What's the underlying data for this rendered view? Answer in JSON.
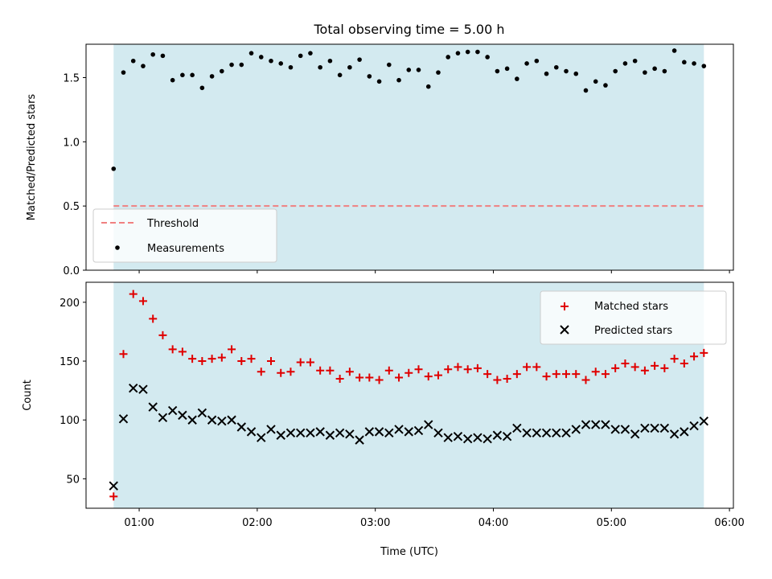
{
  "chart_data": [
    {
      "type": "scatter",
      "title": "Total observing time = 5.00 h",
      "xlabel": "",
      "ylabel": "Matched/Predicted stars",
      "xlim": [
        "00:33",
        "06:02"
      ],
      "ylim": [
        0,
        1.76
      ],
      "x_ticks": [
        "01:00",
        "02:00",
        "03:00",
        "04:00",
        "05:00",
        "06:00"
      ],
      "y_ticks": [
        "0.0",
        "0.5",
        "1.0",
        "1.5"
      ],
      "shaded_span": [
        "00:47",
        "05:47"
      ],
      "shade_color": "#d3eaf0",
      "legend_position": "lower-left",
      "threshold": {
        "name": "Threshold",
        "value": 0.5,
        "color": "#f08080",
        "style": "dashed"
      },
      "series": [
        {
          "name": "Measurements",
          "marker": "dot",
          "color": "#000000",
          "x": [
            "00:47",
            "00:52",
            "00:57",
            "01:02",
            "01:07",
            "01:12",
            "01:17",
            "01:22",
            "01:27",
            "01:32",
            "01:37",
            "01:42",
            "01:47",
            "01:52",
            "01:57",
            "02:02",
            "02:07",
            "02:12",
            "02:17",
            "02:22",
            "02:27",
            "02:32",
            "02:37",
            "02:42",
            "02:47",
            "02:52",
            "02:57",
            "03:02",
            "03:07",
            "03:12",
            "03:17",
            "03:22",
            "03:27",
            "03:32",
            "03:37",
            "03:42",
            "03:47",
            "03:52",
            "03:57",
            "04:02",
            "04:07",
            "04:12",
            "04:17",
            "04:22",
            "04:27",
            "04:32",
            "04:37",
            "04:42",
            "04:47",
            "04:52",
            "04:57",
            "05:02",
            "05:07",
            "05:12",
            "05:17",
            "05:22",
            "05:27",
            "05:32",
            "05:37",
            "05:42",
            "05:47"
          ],
          "y": [
            0.79,
            1.54,
            1.63,
            1.59,
            1.68,
            1.67,
            1.48,
            1.52,
            1.52,
            1.42,
            1.51,
            1.55,
            1.6,
            1.6,
            1.69,
            1.66,
            1.63,
            1.61,
            1.58,
            1.67,
            1.69,
            1.58,
            1.63,
            1.52,
            1.58,
            1.64,
            1.51,
            1.47,
            1.6,
            1.48,
            1.56,
            1.56,
            1.43,
            1.54,
            1.66,
            1.69,
            1.7,
            1.7,
            1.66,
            1.55,
            1.57,
            1.49,
            1.61,
            1.63,
            1.53,
            1.58,
            1.55,
            1.53,
            1.4,
            1.47,
            1.44,
            1.55,
            1.61,
            1.63,
            1.54,
            1.57,
            1.55,
            1.71,
            1.62,
            1.61,
            1.59
          ]
        }
      ]
    },
    {
      "type": "scatter",
      "title": "",
      "xlabel": "Time (UTC)",
      "ylabel": "Count",
      "xlim": [
        "00:33",
        "06:02"
      ],
      "ylim": [
        25,
        217
      ],
      "x_ticks": [
        "01:00",
        "02:00",
        "03:00",
        "04:00",
        "05:00",
        "06:00"
      ],
      "y_ticks": [
        "50",
        "100",
        "150",
        "200"
      ],
      "shaded_span": [
        "00:47",
        "05:47"
      ],
      "shade_color": "#d3eaf0",
      "legend_position": "upper-right",
      "series": [
        {
          "name": "Matched stars",
          "marker": "plus",
          "color": "#e00000",
          "x": [
            "00:47",
            "00:52",
            "00:57",
            "01:02",
            "01:07",
            "01:12",
            "01:17",
            "01:22",
            "01:27",
            "01:32",
            "01:37",
            "01:42",
            "01:47",
            "01:52",
            "01:57",
            "02:02",
            "02:07",
            "02:12",
            "02:17",
            "02:22",
            "02:27",
            "02:32",
            "02:37",
            "02:42",
            "02:47",
            "02:52",
            "02:57",
            "03:02",
            "03:07",
            "03:12",
            "03:17",
            "03:22",
            "03:27",
            "03:32",
            "03:37",
            "03:42",
            "03:47",
            "03:52",
            "03:57",
            "04:02",
            "04:07",
            "04:12",
            "04:17",
            "04:22",
            "04:27",
            "04:32",
            "04:37",
            "04:42",
            "04:47",
            "04:52",
            "04:57",
            "05:02",
            "05:07",
            "05:12",
            "05:17",
            "05:22",
            "05:27",
            "05:32",
            "05:37",
            "05:42",
            "05:47"
          ],
          "y": [
            35,
            156,
            207,
            201,
            186,
            172,
            160,
            158,
            152,
            150,
            152,
            153,
            160,
            150,
            152,
            141,
            150,
            140,
            141,
            149,
            149,
            142,
            142,
            135,
            141,
            136,
            136,
            134,
            142,
            136,
            140,
            143,
            137,
            138,
            143,
            145,
            143,
            144,
            139,
            134,
            135,
            139,
            145,
            145,
            137,
            139,
            139,
            139,
            134,
            141,
            139,
            144,
            148,
            145,
            142,
            146,
            144,
            152,
            148,
            154,
            157
          ]
        },
        {
          "name": "Predicted stars",
          "marker": "x",
          "color": "#000000",
          "x": [
            "00:47",
            "00:52",
            "00:57",
            "01:02",
            "01:07",
            "01:12",
            "01:17",
            "01:22",
            "01:27",
            "01:32",
            "01:37",
            "01:42",
            "01:47",
            "01:52",
            "01:57",
            "02:02",
            "02:07",
            "02:12",
            "02:17",
            "02:22",
            "02:27",
            "02:32",
            "02:37",
            "02:42",
            "02:47",
            "02:52",
            "02:57",
            "03:02",
            "03:07",
            "03:12",
            "03:17",
            "03:22",
            "03:27",
            "03:32",
            "03:37",
            "03:42",
            "03:47",
            "03:52",
            "03:57",
            "04:02",
            "04:07",
            "04:12",
            "04:17",
            "04:22",
            "04:27",
            "04:32",
            "04:37",
            "04:42",
            "04:47",
            "04:52",
            "04:57",
            "05:02",
            "05:07",
            "05:12",
            "05:17",
            "05:22",
            "05:27",
            "05:32",
            "05:37",
            "05:42",
            "05:47"
          ],
          "y": [
            44,
            101,
            127,
            126,
            111,
            102,
            108,
            104,
            100,
            106,
            100,
            99,
            100,
            94,
            90,
            85,
            92,
            87,
            89,
            89,
            89,
            90,
            87,
            89,
            88,
            83,
            90,
            90,
            89,
            92,
            90,
            91,
            96,
            89,
            85,
            86,
            84,
            85,
            84,
            87,
            86,
            93,
            89,
            89,
            89,
            89,
            89,
            92,
            96,
            96,
            96,
            92,
            92,
            88,
            93,
            93,
            93,
            88,
            90,
            95,
            99
          ]
        }
      ]
    }
  ]
}
